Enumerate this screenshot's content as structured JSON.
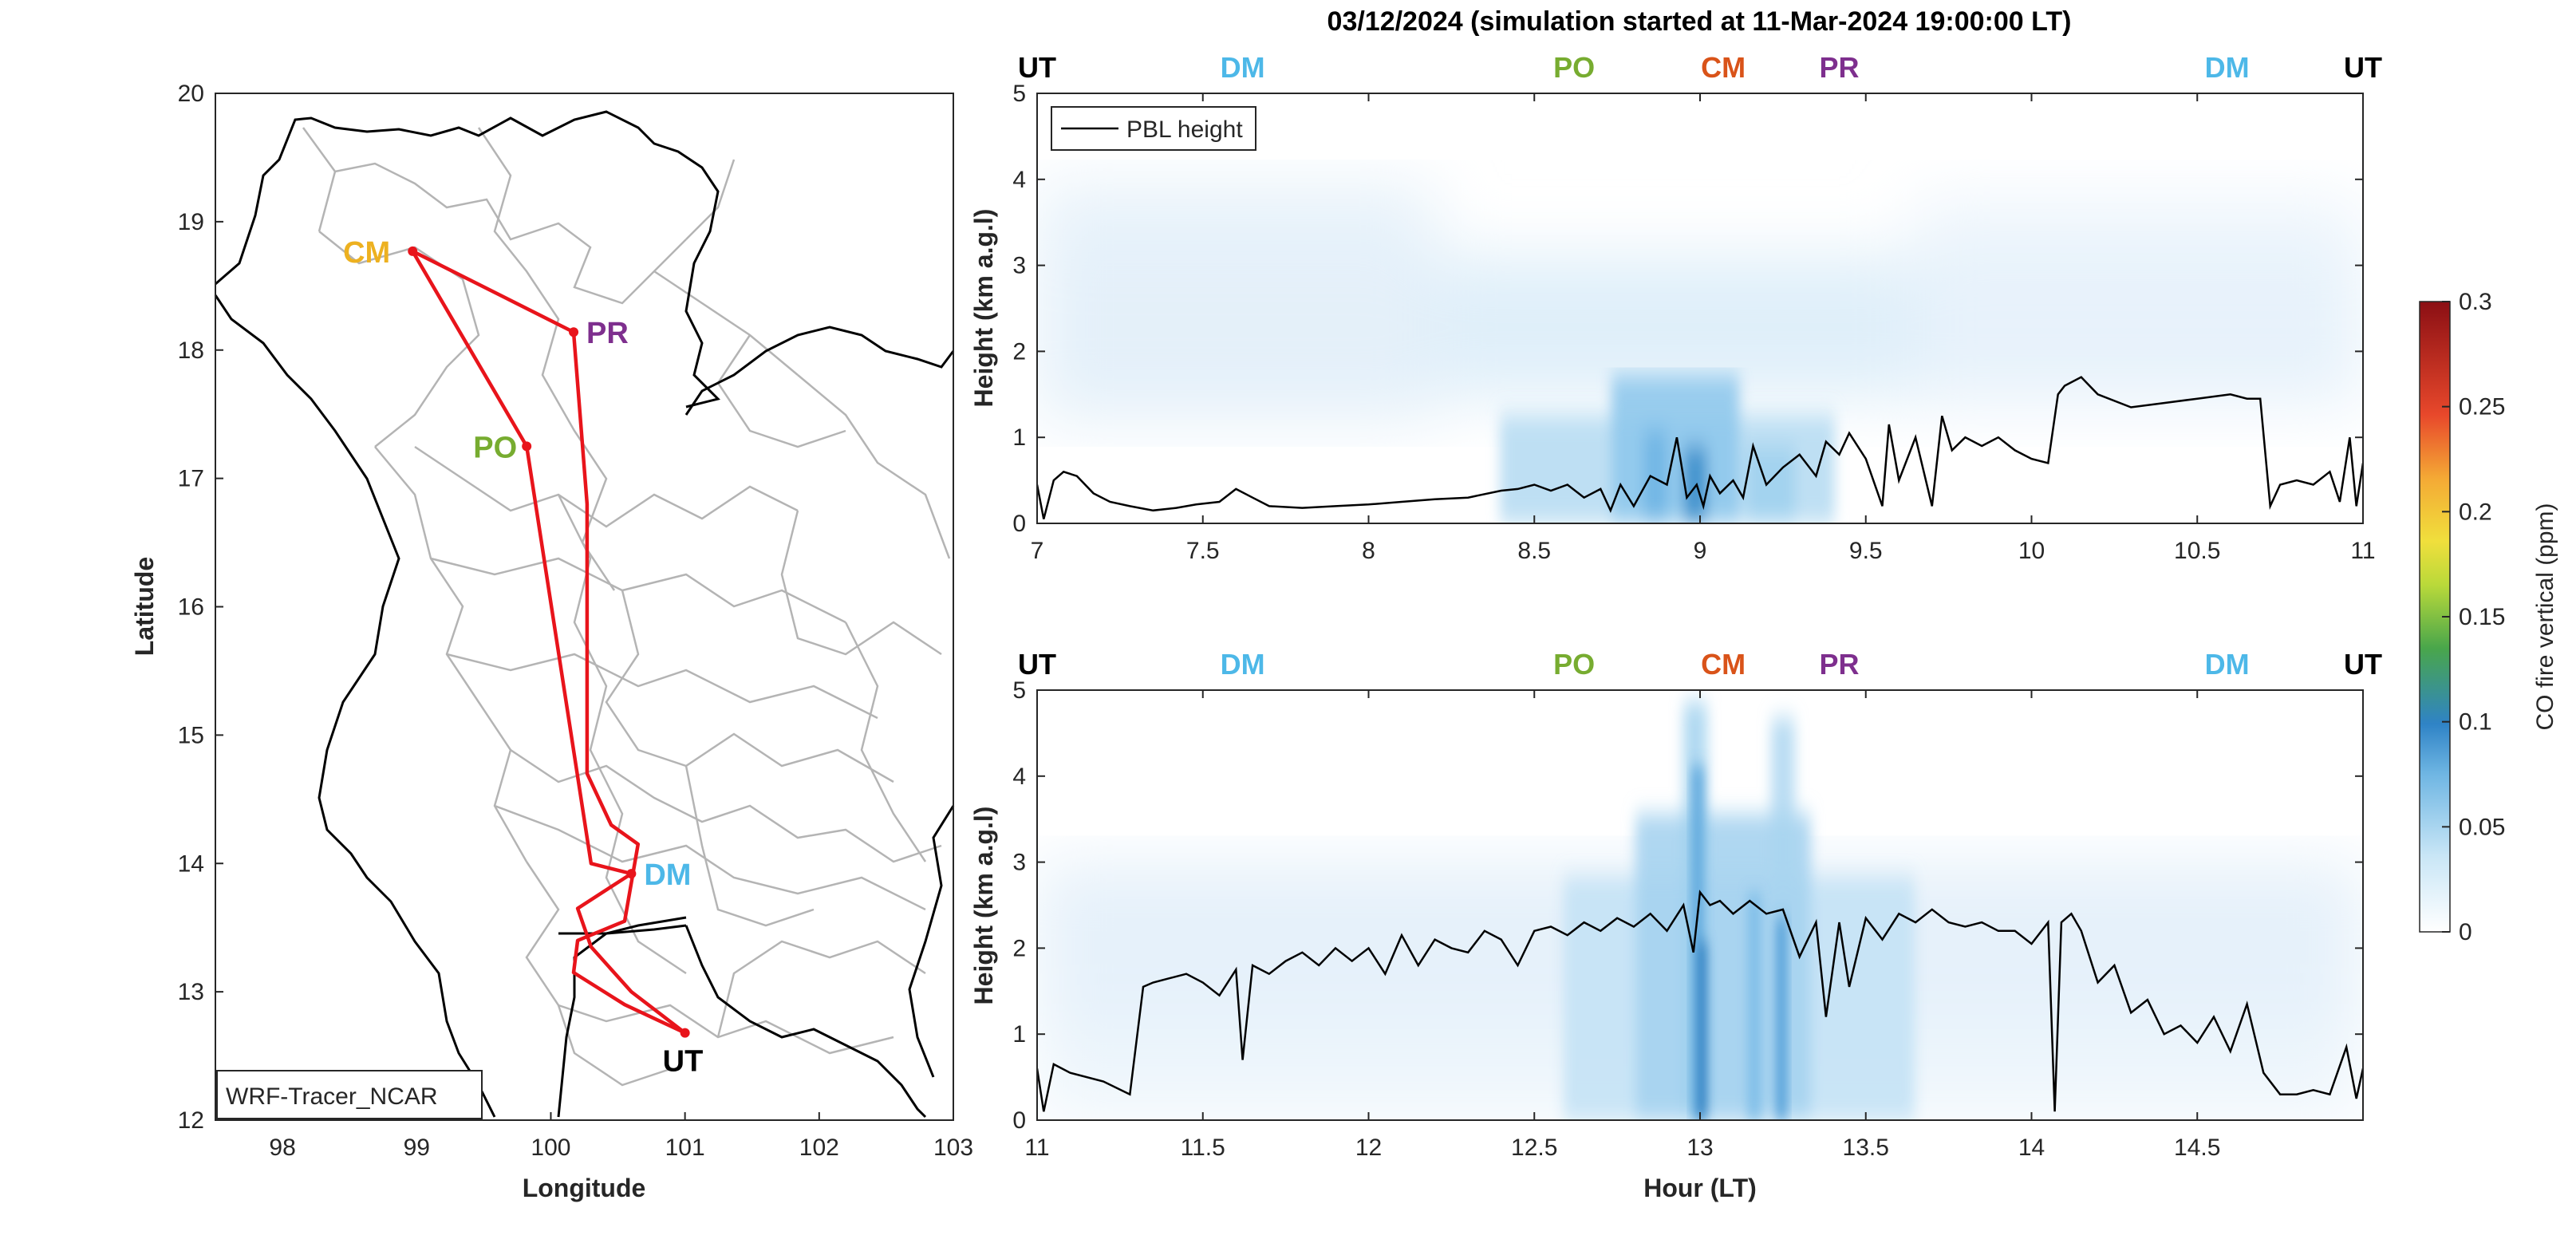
{
  "title": "03/12/2024 (simulation started at 11-Mar-2024 19:00:00 LT)",
  "colors": {
    "route": "#e8141b",
    "pbl": "#000000",
    "border": "#000000",
    "admin": "#b4b4b4",
    "UT": "#000000",
    "DM": "#4db8e8",
    "PO": "#77ac30",
    "CM": "#d95319",
    "PR": "#7e2f8e",
    "CM_map": "#edb120"
  },
  "chart_data": [
    {
      "type": "map",
      "xlabel": "Longitude",
      "ylabel": "Latitude",
      "xlim": [
        97.5,
        103
      ],
      "ylim": [
        12,
        20
      ],
      "xticks": [
        "98",
        "99",
        "100",
        "101",
        "102",
        "103"
      ],
      "yticks": [
        "12",
        "13",
        "14",
        "15",
        "16",
        "17",
        "18",
        "19",
        "20"
      ],
      "legend": "WRF-Tracer_NCAR",
      "sites": [
        {
          "label": "CM",
          "lon": 98.97,
          "lat": 18.77
        },
        {
          "label": "PR",
          "lon": 100.17,
          "lat": 18.14
        },
        {
          "label": "PO",
          "lon": 99.82,
          "lat": 17.25
        },
        {
          "label": "DM",
          "lon": 100.6,
          "lat": 13.92
        },
        {
          "label": "UT",
          "lon": 101.0,
          "lat": 12.68
        }
      ],
      "route": [
        [
          101.0,
          12.68
        ],
        [
          100.6,
          13.0
        ],
        [
          100.3,
          13.35
        ],
        [
          100.2,
          13.65
        ],
        [
          100.6,
          13.92
        ],
        [
          100.3,
          14.0
        ],
        [
          99.82,
          17.25
        ],
        [
          98.97,
          18.77
        ],
        [
          100.17,
          18.14
        ],
        [
          100.27,
          16.8
        ],
        [
          100.27,
          14.7
        ],
        [
          100.45,
          14.3
        ],
        [
          100.65,
          14.15
        ],
        [
          100.55,
          13.55
        ],
        [
          100.2,
          13.4
        ],
        [
          100.17,
          13.15
        ],
        [
          100.55,
          12.9
        ],
        [
          101.0,
          12.68
        ]
      ]
    },
    {
      "type": "heatmap",
      "title": "03/12/2024 (simulation started at 11-Mar-2024 19:00:00 LT)",
      "ylabel": "Height (km a.g.l)",
      "xlabel": "",
      "xlim": [
        7,
        11
      ],
      "ylim": [
        0,
        5
      ],
      "xticks": [
        "7",
        "7.5",
        "8",
        "8.5",
        "9",
        "9.5",
        "10",
        "10.5",
        "11"
      ],
      "yticks": [
        "0",
        "1",
        "2",
        "3",
        "4",
        "5"
      ],
      "legend": "PBL height",
      "legend_position": "top-left",
      "flight_labels": [
        {
          "label": "UT",
          "x": 7.0,
          "color": "#000000"
        },
        {
          "label": "DM",
          "x": 7.62,
          "color": "#4db8e8"
        },
        {
          "label": "PO",
          "x": 8.62,
          "color": "#77ac30"
        },
        {
          "label": "CM",
          "x": 9.07,
          "color": "#d95319"
        },
        {
          "label": "PR",
          "x": 9.42,
          "color": "#7e2f8e"
        },
        {
          "label": "DM",
          "x": 10.59,
          "color": "#4db8e8"
        },
        {
          "label": "UT",
          "x": 11.0,
          "color": "#000000"
        }
      ],
      "pbl_height": {
        "x": [
          7.0,
          7.02,
          7.05,
          7.08,
          7.12,
          7.17,
          7.22,
          7.28,
          7.35,
          7.42,
          7.48,
          7.55,
          7.6,
          7.65,
          7.7,
          7.8,
          7.9,
          8.0,
          8.1,
          8.2,
          8.3,
          8.4,
          8.45,
          8.5,
          8.55,
          8.6,
          8.65,
          8.7,
          8.73,
          8.76,
          8.8,
          8.85,
          8.9,
          8.93,
          8.96,
          8.99,
          9.01,
          9.03,
          9.06,
          9.1,
          9.13,
          9.16,
          9.2,
          9.25,
          9.3,
          9.35,
          9.38,
          9.42,
          9.45,
          9.5,
          9.55,
          9.57,
          9.6,
          9.65,
          9.7,
          9.73,
          9.76,
          9.8,
          9.85,
          9.9,
          9.95,
          10.0,
          10.05,
          10.08,
          10.1,
          10.15,
          10.2,
          10.3,
          10.4,
          10.5,
          10.6,
          10.65,
          10.69,
          10.72,
          10.75,
          10.8,
          10.85,
          10.9,
          10.93,
          10.96,
          10.98,
          11.0
        ],
        "y": [
          0.45,
          0.05,
          0.5,
          0.6,
          0.55,
          0.35,
          0.25,
          0.2,
          0.15,
          0.18,
          0.22,
          0.25,
          0.4,
          0.3,
          0.2,
          0.18,
          0.2,
          0.22,
          0.25,
          0.28,
          0.3,
          0.38,
          0.4,
          0.45,
          0.38,
          0.45,
          0.3,
          0.4,
          0.15,
          0.45,
          0.2,
          0.55,
          0.45,
          1.0,
          0.3,
          0.45,
          0.2,
          0.55,
          0.35,
          0.5,
          0.3,
          0.9,
          0.45,
          0.65,
          0.8,
          0.55,
          0.95,
          0.8,
          1.05,
          0.75,
          0.2,
          1.15,
          0.5,
          1.0,
          0.2,
          1.25,
          0.85,
          1.0,
          0.9,
          1.0,
          0.85,
          0.75,
          0.7,
          1.5,
          1.6,
          1.7,
          1.5,
          1.35,
          1.4,
          1.45,
          1.5,
          1.45,
          1.45,
          0.2,
          0.45,
          0.5,
          0.45,
          0.6,
          0.25,
          1.0,
          0.2,
          0.7
        ]
      }
    },
    {
      "type": "heatmap",
      "title": "",
      "ylabel": "Height (km a.g.l)",
      "xlabel": "Hour (LT)",
      "xlim": [
        11,
        15
      ],
      "ylim": [
        0,
        5
      ],
      "xticks": [
        "11",
        "11.5",
        "12",
        "12.5",
        "13",
        "13.5",
        "14",
        "14.5"
      ],
      "yticks": [
        "0",
        "1",
        "2",
        "3",
        "4",
        "5"
      ],
      "flight_labels": [
        {
          "label": "UT",
          "x": 11.0,
          "color": "#000000"
        },
        {
          "label": "DM",
          "x": 11.62,
          "color": "#4db8e8"
        },
        {
          "label": "PO",
          "x": 12.62,
          "color": "#77ac30"
        },
        {
          "label": "CM",
          "x": 13.07,
          "color": "#d95319"
        },
        {
          "label": "PR",
          "x": 13.42,
          "color": "#7e2f8e"
        },
        {
          "label": "DM",
          "x": 14.59,
          "color": "#4db8e8"
        },
        {
          "label": "UT",
          "x": 15.0,
          "color": "#000000"
        }
      ],
      "pbl_height": {
        "x": [
          11.0,
          11.02,
          11.05,
          11.1,
          11.2,
          11.28,
          11.32,
          11.35,
          11.4,
          11.45,
          11.5,
          11.55,
          11.6,
          11.62,
          11.65,
          11.7,
          11.75,
          11.8,
          11.85,
          11.9,
          11.95,
          12.0,
          12.05,
          12.1,
          12.15,
          12.2,
          12.25,
          12.3,
          12.35,
          12.4,
          12.45,
          12.5,
          12.55,
          12.6,
          12.65,
          12.7,
          12.75,
          12.8,
          12.85,
          12.9,
          12.95,
          12.98,
          13.0,
          13.03,
          13.06,
          13.1,
          13.15,
          13.2,
          13.25,
          13.3,
          13.35,
          13.38,
          13.42,
          13.45,
          13.5,
          13.55,
          13.6,
          13.65,
          13.7,
          13.75,
          13.8,
          13.85,
          13.9,
          13.95,
          14.0,
          14.05,
          14.07,
          14.09,
          14.12,
          14.15,
          14.2,
          14.25,
          14.3,
          14.35,
          14.4,
          14.45,
          14.5,
          14.55,
          14.6,
          14.65,
          14.7,
          14.75,
          14.8,
          14.85,
          14.9,
          14.95,
          14.98,
          15.0
        ],
        "y": [
          0.6,
          0.1,
          0.65,
          0.55,
          0.45,
          0.3,
          1.55,
          1.6,
          1.65,
          1.7,
          1.6,
          1.45,
          1.75,
          0.7,
          1.8,
          1.7,
          1.85,
          1.95,
          1.8,
          2.0,
          1.85,
          2.0,
          1.7,
          2.15,
          1.8,
          2.1,
          2.0,
          1.95,
          2.2,
          2.1,
          1.8,
          2.2,
          2.25,
          2.15,
          2.3,
          2.2,
          2.35,
          2.25,
          2.4,
          2.2,
          2.5,
          1.95,
          2.65,
          2.5,
          2.55,
          2.4,
          2.55,
          2.4,
          2.45,
          1.9,
          2.3,
          1.2,
          2.3,
          1.55,
          2.35,
          2.1,
          2.4,
          2.3,
          2.45,
          2.3,
          2.25,
          2.3,
          2.2,
          2.2,
          2.05,
          2.3,
          0.1,
          2.3,
          2.4,
          2.2,
          1.6,
          1.8,
          1.25,
          1.4,
          1.0,
          1.1,
          0.9,
          1.2,
          0.8,
          1.35,
          0.55,
          0.3,
          0.3,
          0.35,
          0.3,
          0.85,
          0.25,
          0.6
        ]
      }
    },
    {
      "type": "colorbar",
      "ylabel": "CO fire vertical (ppm)",
      "ylim": [
        0,
        0.3
      ],
      "yticks": [
        "0",
        "0.05",
        "0.1",
        "0.15",
        "0.2",
        "0.25",
        "0.3"
      ]
    }
  ]
}
